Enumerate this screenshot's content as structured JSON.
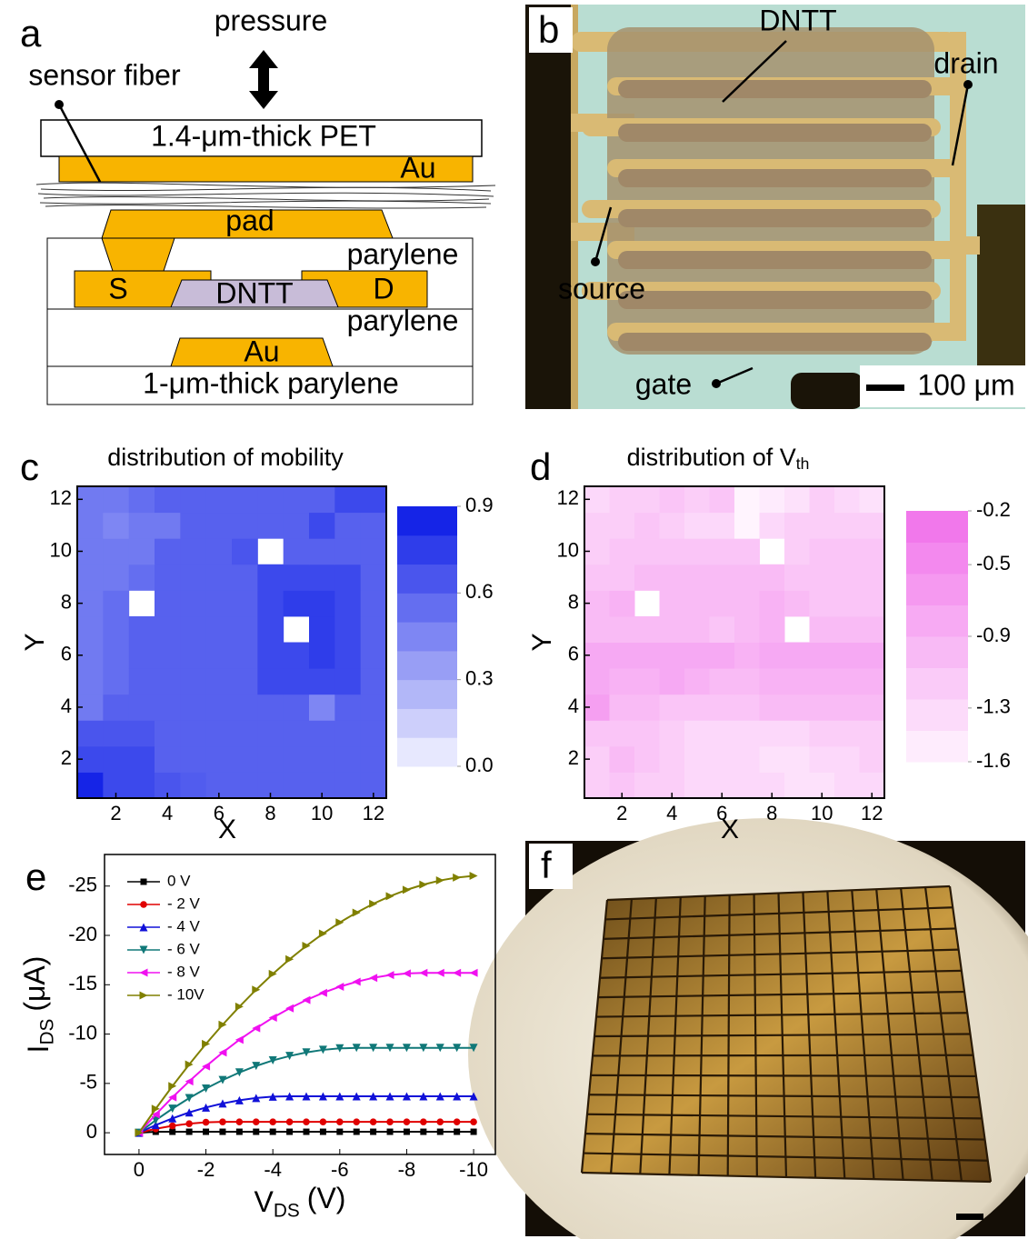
{
  "diagram_a": {
    "letter": "a",
    "pressure": "pressure",
    "sensor_fiber": "sensor fiber",
    "pet": "1.4-μm-thick PET",
    "au_top": "Au",
    "pad": "pad",
    "parylene_upper": "parylene",
    "source": "S",
    "dntt": "DNTT",
    "drain": "D",
    "parylene_lower": "parylene",
    "au_gate": "Au",
    "substrate": "1-μm-thick parylene"
  },
  "photo_b": {
    "letter": "b",
    "dntt": "DNTT",
    "drain": "drain",
    "source": "source",
    "gate": "gate",
    "scale_bar": "100 μm"
  },
  "photo_f": {
    "letter": "f"
  },
  "chart_data": [
    {
      "type": "heatmap",
      "panel_letter": "c",
      "title": {
        "main": "distribution of mobility"
      },
      "x_label": "X",
      "y_label": "Y",
      "x": [
        1,
        2,
        3,
        4,
        5,
        6,
        7,
        8,
        9,
        10,
        11,
        12
      ],
      "y": [
        1,
        2,
        3,
        4,
        5,
        6,
        7,
        8,
        9,
        10,
        11,
        12
      ],
      "values": [
        [
          0.85,
          0.7,
          0.7,
          0.65,
          0.62,
          0.6,
          0.6,
          0.6,
          0.6,
          0.6,
          0.6,
          0.6
        ],
        [
          0.7,
          0.7,
          0.7,
          0.6,
          0.6,
          0.6,
          0.6,
          0.6,
          0.6,
          0.6,
          0.6,
          0.6
        ],
        [
          0.65,
          0.65,
          0.65,
          0.6,
          0.6,
          0.6,
          0.6,
          0.6,
          0.6,
          0.6,
          0.6,
          0.6
        ],
        [
          0.5,
          0.6,
          0.6,
          0.6,
          0.6,
          0.6,
          0.6,
          0.6,
          0.6,
          0.45,
          0.6,
          0.6
        ],
        [
          0.5,
          0.55,
          0.6,
          0.6,
          0.6,
          0.6,
          0.6,
          0.7,
          0.7,
          0.7,
          0.7,
          0.6
        ],
        [
          0.5,
          0.55,
          0.6,
          0.6,
          0.6,
          0.6,
          0.6,
          0.7,
          0.7,
          0.75,
          0.7,
          0.6
        ],
        [
          0.5,
          0.55,
          0.6,
          0.6,
          0.6,
          0.6,
          0.6,
          0.7,
          null,
          0.75,
          0.7,
          0.6
        ],
        [
          0.5,
          0.55,
          null,
          0.6,
          0.6,
          0.6,
          0.6,
          0.7,
          0.75,
          0.75,
          0.7,
          0.6
        ],
        [
          0.5,
          0.5,
          0.55,
          0.6,
          0.6,
          0.6,
          0.6,
          0.7,
          0.7,
          0.7,
          0.7,
          0.6
        ],
        [
          0.5,
          0.5,
          0.5,
          0.6,
          0.6,
          0.6,
          0.65,
          null,
          0.6,
          0.6,
          0.6,
          0.6
        ],
        [
          0.5,
          0.45,
          0.5,
          0.5,
          0.6,
          0.6,
          0.6,
          0.6,
          0.6,
          0.7,
          0.6,
          0.6
        ],
        [
          0.5,
          0.5,
          0.55,
          0.6,
          0.6,
          0.6,
          0.6,
          0.6,
          0.6,
          0.6,
          0.7,
          0.7
        ]
      ],
      "xlim": [
        0.5,
        12.5
      ],
      "ylim": [
        0.5,
        12.5
      ],
      "xticks": [
        2,
        4,
        6,
        8,
        10,
        12
      ],
      "yticks": [
        2,
        4,
        6,
        8,
        10,
        12
      ],
      "colorbar": {
        "lim": [
          0,
          0.9
        ],
        "ticks": [
          {
            "value": 0,
            "label": "0.0"
          },
          0.3,
          0.6,
          0.9
        ],
        "colors": [
          "#f4f4ff",
          "#0818e6"
        ],
        "bands": 9
      }
    },
    {
      "type": "heatmap",
      "panel_letter": "d",
      "title": {
        "main": "distribution of V",
        "sub": "th"
      },
      "x_label": "X",
      "y_label": "Y",
      "x": [
        1,
        2,
        3,
        4,
        5,
        6,
        7,
        8,
        9,
        10,
        11,
        12
      ],
      "y": [
        1,
        2,
        3,
        4,
        5,
        6,
        7,
        8,
        9,
        10,
        11,
        12
      ],
      "values": [
        [
          -1.2,
          -1.1,
          -1.2,
          -1.2,
          -1.3,
          -1.3,
          -1.3,
          -1.3,
          -1.4,
          -1.4,
          -1.3,
          -1.3
        ],
        [
          -1.2,
          -1.0,
          -1.1,
          -1.2,
          -1.3,
          -1.3,
          -1.3,
          -1.4,
          -1.4,
          -1.3,
          -1.3,
          -1.2
        ],
        [
          -1.1,
          -1.1,
          -1.1,
          -1.2,
          -1.3,
          -1.3,
          -1.3,
          -1.3,
          -1.3,
          -1.2,
          -1.2,
          -1.2
        ],
        [
          -0.7,
          -1.0,
          -1.0,
          -1.1,
          -1.1,
          -1.1,
          -1.1,
          -1.0,
          -1.0,
          -1.0,
          -1.0,
          -1.0
        ],
        [
          -0.8,
          -0.9,
          -0.9,
          -0.8,
          -0.9,
          -1.0,
          -1.0,
          -0.9,
          -0.9,
          -0.9,
          -0.9,
          -0.9
        ],
        [
          -0.8,
          -0.8,
          -0.8,
          -0.8,
          -0.8,
          -0.8,
          -0.9,
          -0.8,
          -0.8,
          -0.8,
          -0.8,
          -0.8
        ],
        [
          -1.0,
          -1.0,
          -1.0,
          -1.0,
          -1.0,
          -1.1,
          -1.0,
          -0.9,
          null,
          -1.0,
          -1.0,
          -1.0
        ],
        [
          -1.0,
          -0.9,
          null,
          -1.0,
          -1.0,
          -1.0,
          -1.0,
          -0.9,
          -1.0,
          -1.1,
          -1.1,
          -1.1
        ],
        [
          -1.1,
          -1.1,
          -1.0,
          -1.0,
          -1.0,
          -1.0,
          -1.0,
          -1.0,
          -1.1,
          -1.1,
          -1.1,
          -1.1
        ],
        [
          -1.2,
          -1.1,
          -1.1,
          -1.1,
          -1.1,
          -1.1,
          -1.1,
          null,
          -1.2,
          -1.1,
          -1.1,
          -1.1
        ],
        [
          -1.2,
          -1.2,
          -1.1,
          -1.2,
          -1.3,
          -1.3,
          -1.6,
          -1.3,
          -1.2,
          -1.2,
          -1.2,
          -1.2
        ],
        [
          -1.3,
          -1.2,
          -1.2,
          -1.1,
          -1.2,
          -1.1,
          -1.6,
          -1.5,
          -1.4,
          -1.2,
          -1.3,
          -1.4
        ]
      ],
      "xlim": [
        0.5,
        12.5
      ],
      "ylim": [
        0.5,
        12.5
      ],
      "xticks": [
        2,
        4,
        6,
        8,
        10,
        12
      ],
      "yticks": [
        2,
        4,
        6,
        8,
        10,
        12
      ],
      "colorbar": {
        "lim": [
          -1.6,
          -0.2
        ],
        "ticks": [
          -1.6,
          -1.3,
          -0.9,
          -0.5,
          -0.2
        ],
        "colors": [
          "#fff4fe",
          "#f070ea"
        ],
        "bands": 8
      }
    },
    {
      "type": "line",
      "panel_letter": "e",
      "x_label": {
        "main": "V",
        "sub": "DS",
        "unit": "(V)"
      },
      "y_label": {
        "main": "I",
        "sub": "DS",
        "unit": "(μA)"
      },
      "x": [
        0,
        -0.5,
        -1,
        -1.5,
        -2,
        -2.5,
        -3,
        -3.5,
        -4,
        -4.5,
        -5,
        -5.5,
        -6,
        -6.5,
        -7,
        -7.5,
        -8,
        -8.5,
        -9,
        -9.5,
        -10
      ],
      "series": [
        {
          "name": "0 V",
          "color": "#000000",
          "marker": "square",
          "values": [
            0,
            -0.1,
            -0.1,
            -0.1,
            -0.1,
            -0.1,
            -0.1,
            -0.1,
            -0.1,
            -0.1,
            -0.1,
            -0.1,
            -0.1,
            -0.1,
            -0.1,
            -0.1,
            -0.1,
            -0.1,
            -0.1,
            -0.1,
            -0.1
          ]
        },
        {
          "name": "- 2 V",
          "color": "#e00000",
          "marker": "circle",
          "values": [
            0,
            -0.4,
            -0.7,
            -0.92,
            -1.06,
            -1.1,
            -1.1,
            -1.1,
            -1.1,
            -1.1,
            -1.1,
            -1.1,
            -1.1,
            -1.1,
            -1.1,
            -1.1,
            -1.1,
            -1.1,
            -1.1,
            -1.1,
            -1.1
          ]
        },
        {
          "name": "- 4 V",
          "color": "#1010d8",
          "marker": "triangle-up",
          "values": [
            0,
            -0.78,
            -1.46,
            -2.06,
            -2.56,
            -2.97,
            -3.29,
            -3.52,
            -3.66,
            -3.7,
            -3.7,
            -3.7,
            -3.7,
            -3.7,
            -3.7,
            -3.7,
            -3.7,
            -3.7,
            -3.7,
            -3.7,
            -3.7
          ]
        },
        {
          "name": "- 6 V",
          "color": "#107878",
          "marker": "triangle-down",
          "values": [
            0,
            -1.27,
            -2.44,
            -3.51,
            -4.48,
            -5.34,
            -6.11,
            -6.77,
            -7.33,
            -7.78,
            -8.14,
            -8.4,
            -8.55,
            -8.6,
            -8.6,
            -8.6,
            -8.6,
            -8.6,
            -8.6,
            -8.6,
            -8.6
          ]
        },
        {
          "name": "- 8 V",
          "color": "#f010f0",
          "marker": "triangle-left",
          "values": [
            0,
            -1.85,
            -3.59,
            -5.21,
            -6.73,
            -8.13,
            -9.42,
            -10.59,
            -11.66,
            -12.61,
            -13.45,
            -14.18,
            -14.8,
            -15.3,
            -15.7,
            -15.98,
            -16.14,
            -16.2,
            -16.2,
            -16.2,
            -16.2
          ]
        },
        {
          "name": "- 10V",
          "color": "#808000",
          "marker": "triangle-right",
          "values": [
            0,
            -2.43,
            -4.73,
            -6.92,
            -9,
            -10.95,
            -12.78,
            -14.5,
            -16.1,
            -17.58,
            -18.94,
            -20.18,
            -21.31,
            -22.31,
            -23.2,
            -23.97,
            -24.62,
            -25.15,
            -25.57,
            -25.86,
            -26.04
          ]
        }
      ],
      "xlim": [
        1.03,
        -10.65
      ],
      "ylim": [
        2.2,
        -28.2
      ],
      "xticks": [
        0,
        -2,
        -4,
        -6,
        -8,
        -10
      ],
      "yticks": [
        0,
        -5,
        -10,
        -15,
        -20,
        -25
      ],
      "legend": "upper-left"
    }
  ]
}
